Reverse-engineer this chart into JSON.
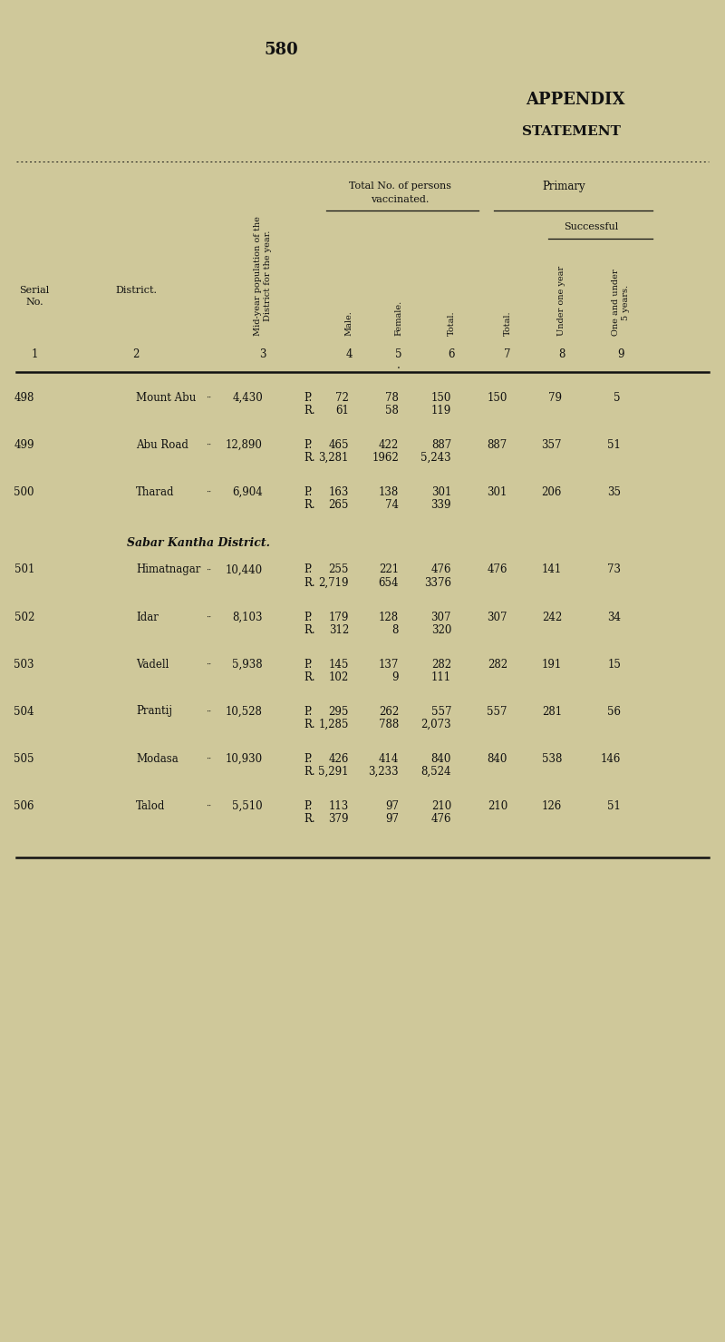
{
  "page_number": "580",
  "title1": "APPENDIX",
  "title2": "STATEMENT",
  "bg_color": "#cfc89a",
  "text_color": "#111111",
  "section_header": "Sabar Kantha District.",
  "rows": [
    {
      "serial": "498",
      "district": "Mount Abu",
      "dots": "··",
      "population": "4,430",
      "pr": [
        "P.",
        "R."
      ],
      "male": [
        "72",
        "61"
      ],
      "female": [
        "78",
        "58"
      ],
      "total_vac": [
        "150",
        "119"
      ],
      "total_col7": "150",
      "under_one": "79",
      "one_under5": "5"
    },
    {
      "serial": "499",
      "district": "Abu Road",
      "dots": "··",
      "population": "12,890",
      "pr": [
        "P.",
        "R."
      ],
      "male": [
        "465",
        "3,281"
      ],
      "female": [
        "422",
        "1962"
      ],
      "total_vac": [
        "887",
        "5,243"
      ],
      "total_col7": "887",
      "under_one": "357",
      "one_under5": "51"
    },
    {
      "serial": "500",
      "district": "Tharad",
      "dots": "··",
      "population": "6,904",
      "pr": [
        "P.",
        "R."
      ],
      "male": [
        "163",
        "265"
      ],
      "female": [
        "138",
        "74"
      ],
      "total_vac": [
        "301",
        "339"
      ],
      "total_col7": "301",
      "under_one": "206",
      "one_under5": "35"
    },
    {
      "serial": "501",
      "district": "Himatnagar",
      "dots": "··",
      "population": "10,440",
      "pr": [
        "P.",
        "R."
      ],
      "male": [
        "255",
        "2,719"
      ],
      "female": [
        "221",
        "654"
      ],
      "total_vac": [
        "476",
        "3376"
      ],
      "total_col7": "476",
      "under_one": "141",
      "one_under5": "73"
    },
    {
      "serial": "502",
      "district": "Idar",
      "dots": "··",
      "population": "8,103",
      "pr": [
        "P.",
        "R."
      ],
      "male": [
        "179",
        "312"
      ],
      "female": [
        "128",
        "8"
      ],
      "total_vac": [
        "307",
        "320"
      ],
      "total_col7": "307",
      "under_one": "242",
      "one_under5": "34"
    },
    {
      "serial": "503",
      "district": "Vadell",
      "dots": "··",
      "population": "5,938",
      "pr": [
        "P.",
        "R."
      ],
      "male": [
        "145",
        "102"
      ],
      "female": [
        "137",
        "9"
      ],
      "total_vac": [
        "282",
        "111"
      ],
      "total_col7": "282",
      "under_one": "191",
      "one_under5": "15"
    },
    {
      "serial": "504",
      "district": "Prantij",
      "dots": "··",
      "population": "10,528",
      "pr": [
        "P.",
        "R."
      ],
      "male": [
        "295",
        "1,285"
      ],
      "female": [
        "262",
        "788"
      ],
      "total_vac": [
        "557",
        "2,073"
      ],
      "total_col7": "557",
      "under_one": "281",
      "one_under5": "56"
    },
    {
      "serial": "505",
      "district": "Modasa",
      "dots": "··",
      "population": "10,930",
      "pr": [
        "P.",
        "R."
      ],
      "male": [
        "426",
        "5,291"
      ],
      "female": [
        "414",
        "3,233"
      ],
      "total_vac": [
        "840",
        "8,524"
      ],
      "total_col7": "840",
      "under_one": "538",
      "one_under5": "146"
    },
    {
      "serial": "506",
      "district": "Talod",
      "dots": "··",
      "population": "5,510",
      "pr": [
        "P.",
        "R."
      ],
      "male": [
        "113",
        "379"
      ],
      "female": [
        "97",
        "97"
      ],
      "total_vac": [
        "210",
        "476"
      ],
      "total_col7": "210",
      "under_one": "126",
      "one_under5": "51"
    }
  ]
}
